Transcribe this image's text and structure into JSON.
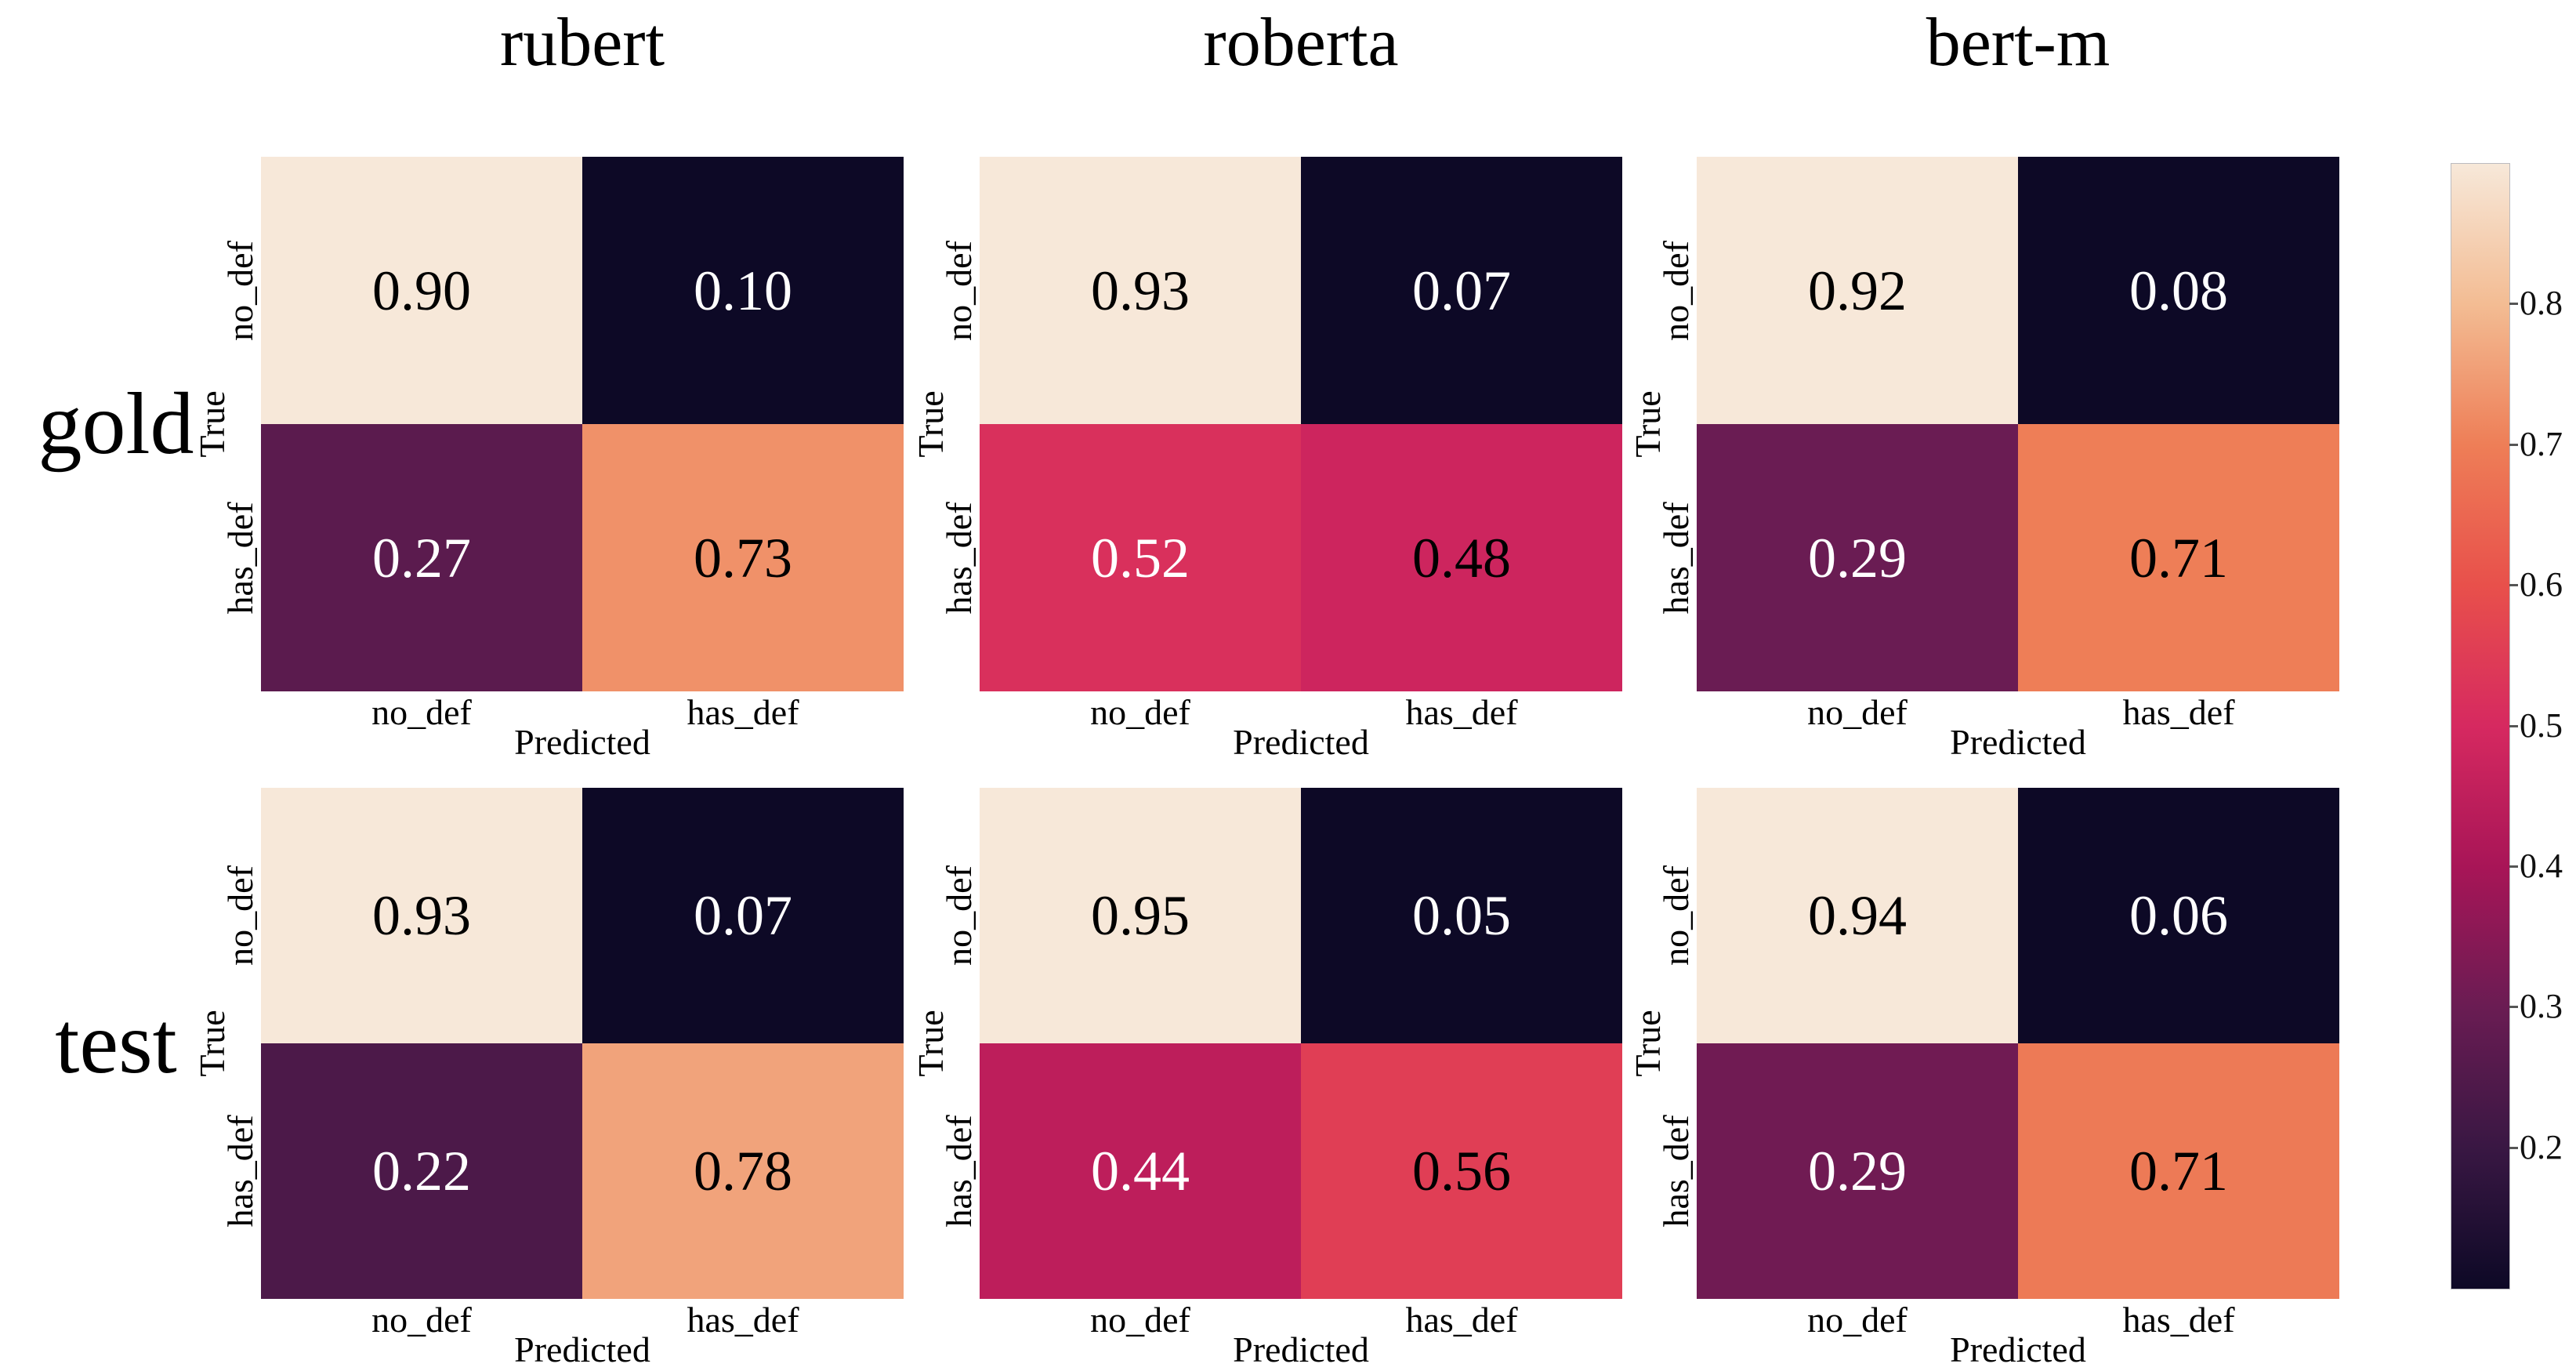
{
  "figure_type": "confusion-matrix-grid",
  "column_titles": [
    "rubert",
    "roberta",
    "bert-m"
  ],
  "row_labels": [
    "gold",
    "test"
  ],
  "axis": {
    "x_label": "Predicted",
    "y_label": "True",
    "x_ticks": [
      "no_def",
      "has_def"
    ],
    "y_ticks": [
      "no_def",
      "has_def"
    ]
  },
  "colorbar": {
    "tick_labels": [
      "0.8",
      "0.7",
      "0.6",
      "0.5",
      "0.4",
      "0.3",
      "0.2"
    ],
    "tick_values": [
      0.8,
      0.7,
      0.6,
      0.5,
      0.4,
      0.3,
      0.2
    ],
    "vmin": 0.1,
    "vmax": 0.9,
    "colormap_name": "rocket",
    "gradient_anchors": [
      {
        "v": 0.1,
        "color": "#0D0926"
      },
      {
        "v": 0.2,
        "color": "#391743"
      },
      {
        "v": 0.3,
        "color": "#6A1C53"
      },
      {
        "v": 0.4,
        "color": "#A81557"
      },
      {
        "v": 0.5,
        "color": "#D62960"
      },
      {
        "v": 0.6,
        "color": "#E8504B"
      },
      {
        "v": 0.7,
        "color": "#EE7E57"
      },
      {
        "v": 0.8,
        "color": "#F3BC93"
      },
      {
        "v": 0.9,
        "color": "#F7E8D9"
      }
    ]
  },
  "chart_data": {
    "type": "heatmap",
    "layout": "2 rows (gold, test) x 3 columns (rubert, roberta, bert-m), shared colorbar at right",
    "x_categories": [
      "no_def",
      "has_def"
    ],
    "y_categories": [
      "no_def",
      "has_def"
    ],
    "xlabel": "Predicted",
    "ylabel": "True",
    "colormap": "rocket",
    "cell_normalization": "per-matrix min-max mapped onto colorbar range 0.1-0.9",
    "annotation_text_rule": "diagonal cells black text, off-diagonal cells white text",
    "colorbar_ticks": [
      0.8,
      0.7,
      0.6,
      0.5,
      0.4,
      0.3,
      0.2
    ],
    "matrices": [
      {
        "row": "gold",
        "column": "rubert",
        "values": [
          [
            0.9,
            0.1
          ],
          [
            0.27,
            0.73
          ]
        ],
        "labels": [
          [
            "0.90",
            "0.10"
          ],
          [
            "0.27",
            "0.73"
          ]
        ]
      },
      {
        "row": "gold",
        "column": "roberta",
        "values": [
          [
            0.93,
            0.07
          ],
          [
            0.52,
            0.48
          ]
        ],
        "labels": [
          [
            "0.93",
            "0.07"
          ],
          [
            "0.52",
            "0.48"
          ]
        ]
      },
      {
        "row": "gold",
        "column": "bert-m",
        "values": [
          [
            0.92,
            0.08
          ],
          [
            0.29,
            0.71
          ]
        ],
        "labels": [
          [
            "0.92",
            "0.08"
          ],
          [
            "0.29",
            "0.71"
          ]
        ]
      },
      {
        "row": "test",
        "column": "rubert",
        "values": [
          [
            0.93,
            0.07
          ],
          [
            0.22,
            0.78
          ]
        ],
        "labels": [
          [
            "0.93",
            "0.07"
          ],
          [
            "0.22",
            "0.78"
          ]
        ]
      },
      {
        "row": "test",
        "column": "roberta",
        "values": [
          [
            0.95,
            0.05
          ],
          [
            0.44,
            0.56
          ]
        ],
        "labels": [
          [
            "0.95",
            "0.05"
          ],
          [
            "0.44",
            "0.56"
          ]
        ]
      },
      {
        "row": "test",
        "column": "bert-m",
        "values": [
          [
            0.94,
            0.06
          ],
          [
            0.29,
            0.71
          ]
        ],
        "labels": [
          [
            "0.94",
            "0.06"
          ],
          [
            "0.29",
            "0.71"
          ]
        ]
      }
    ]
  }
}
